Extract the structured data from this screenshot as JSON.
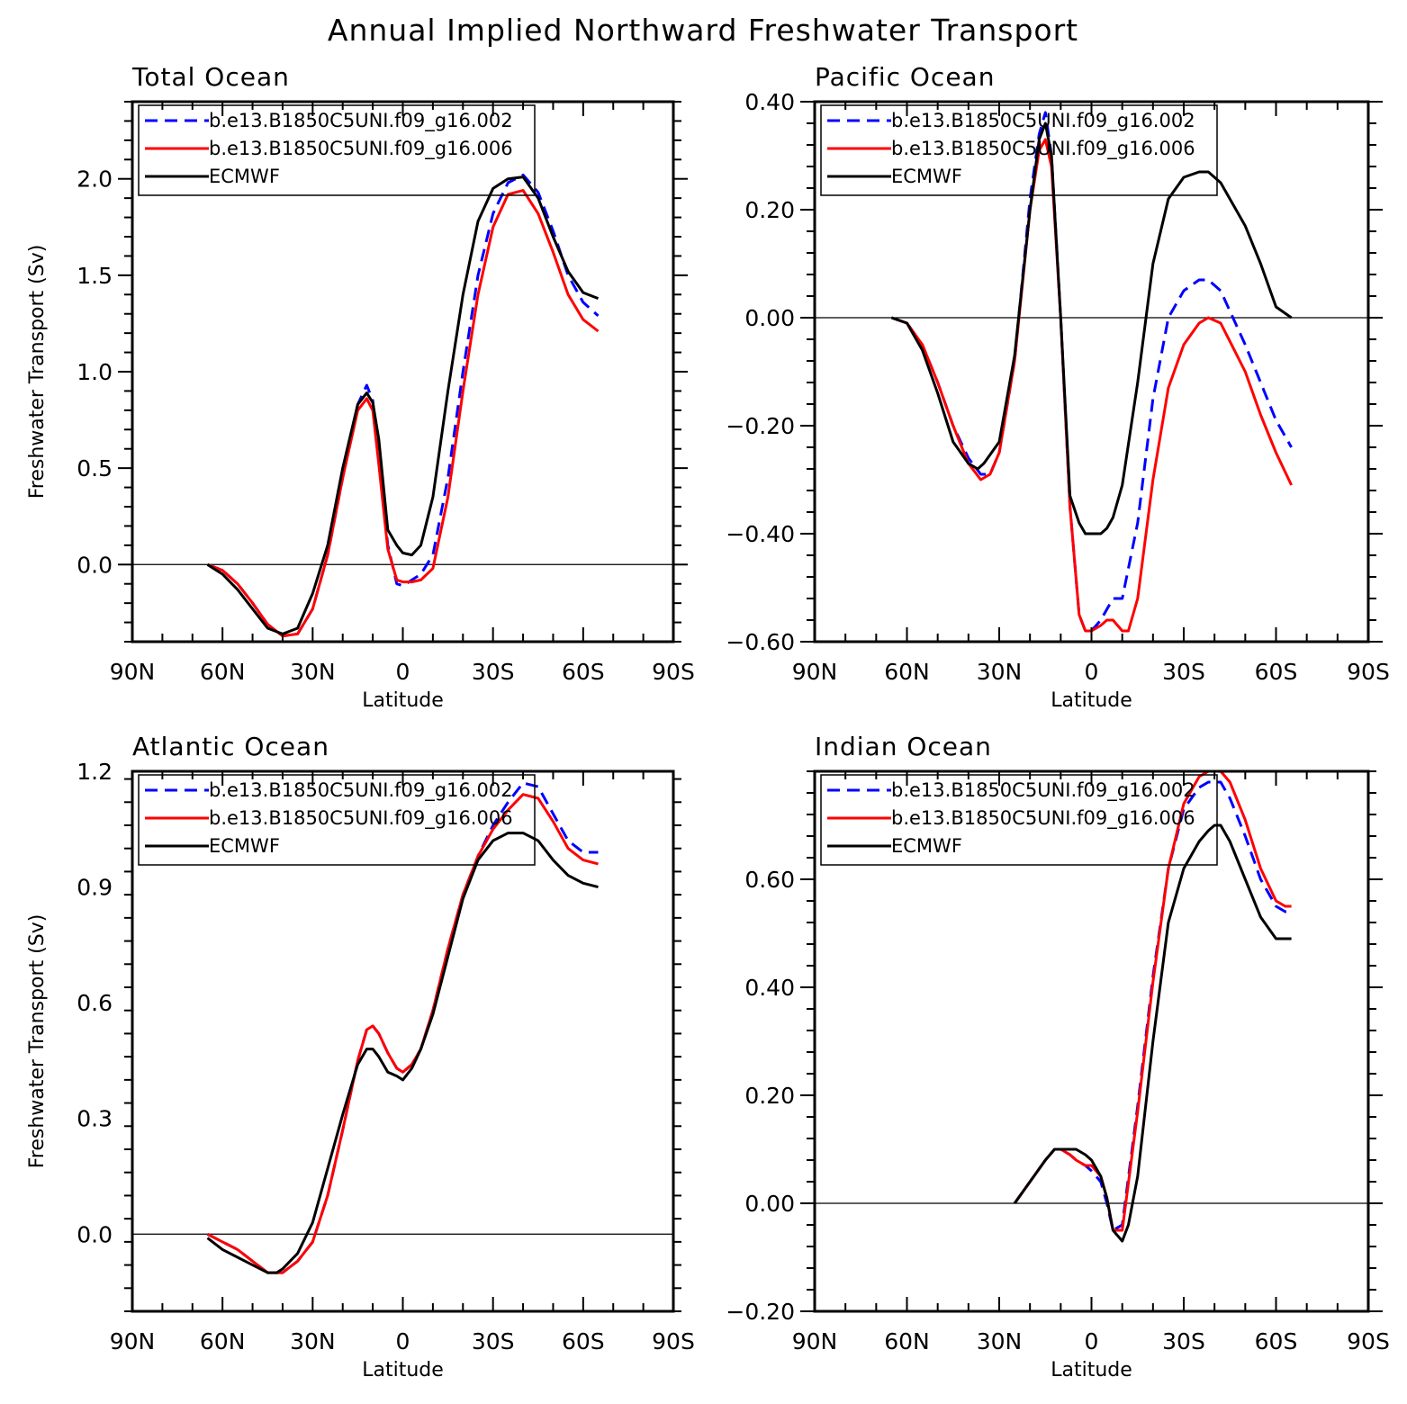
{
  "figure_title": "Annual Implied Northward Freshwater Transport",
  "series_styles": [
    {
      "name": "b.e13.B1850C5UNI.f09_g16.002",
      "color": "#0000ff",
      "dashed": true
    },
    {
      "name": "b.e13.B1850C5UNI.f09_g16.006",
      "color": "#ff0000",
      "dashed": false
    },
    {
      "name": "ECMWF",
      "color": "#000000",
      "dashed": false
    }
  ],
  "chart_data": [
    {
      "type": "line",
      "title": "Total Ocean",
      "xlabel": "Latitude",
      "ylabel": "Freshwater Transport (Sv)",
      "xlim": [
        -90,
        90
      ],
      "ylim": [
        -0.4,
        2.4
      ],
      "x_ticks": [
        -90,
        -60,
        -30,
        0,
        30,
        60,
        90
      ],
      "x_tick_labels": [
        "90N",
        "60N",
        "30N",
        "0",
        "30S",
        "60S",
        "90S"
      ],
      "y_ticks": [
        0.0,
        0.5,
        1.0,
        1.5,
        2.0
      ],
      "y_tick_labels": [
        "0.0",
        "0.5",
        "1.0",
        "1.5",
        "2.0"
      ],
      "y_minor_step": 0.1,
      "zero_line": true,
      "legend": "top-left",
      "series": [
        {
          "name": "b.e13.B1850C5UNI.f09_g16.002",
          "x": [
            -65,
            -60,
            -55,
            -50,
            -45,
            -40,
            -35,
            -30,
            -25,
            -20,
            -15,
            -12,
            -10,
            -8,
            -5,
            -2,
            0,
            3,
            6,
            10,
            15,
            20,
            25,
            30,
            35,
            40,
            45,
            50,
            55,
            60,
            65
          ],
          "values": [
            0.0,
            -0.03,
            -0.1,
            -0.2,
            -0.31,
            -0.37,
            -0.36,
            -0.23,
            0.05,
            0.45,
            0.83,
            0.93,
            0.85,
            0.55,
            0.1,
            -0.1,
            -0.11,
            -0.08,
            -0.05,
            0.05,
            0.45,
            1.0,
            1.5,
            1.82,
            1.98,
            2.02,
            1.93,
            1.73,
            1.5,
            1.36,
            1.29
          ]
        },
        {
          "name": "b.e13.B1850C5UNI.f09_g16.006",
          "x": [
            -65,
            -60,
            -55,
            -50,
            -45,
            -40,
            -35,
            -30,
            -25,
            -20,
            -15,
            -12,
            -10,
            -8,
            -5,
            -2,
            0,
            3,
            6,
            10,
            15,
            20,
            25,
            30,
            35,
            40,
            45,
            50,
            55,
            60,
            65
          ],
          "values": [
            0.0,
            -0.03,
            -0.1,
            -0.2,
            -0.31,
            -0.37,
            -0.36,
            -0.23,
            0.05,
            0.45,
            0.8,
            0.86,
            0.8,
            0.52,
            0.08,
            -0.08,
            -0.09,
            -0.09,
            -0.08,
            -0.02,
            0.35,
            0.9,
            1.4,
            1.75,
            1.92,
            1.94,
            1.82,
            1.62,
            1.4,
            1.27,
            1.21
          ]
        },
        {
          "name": "ECMWF",
          "x": [
            -65,
            -60,
            -55,
            -50,
            -45,
            -40,
            -35,
            -30,
            -25,
            -20,
            -15,
            -12,
            -10,
            -8,
            -5,
            -2,
            0,
            3,
            6,
            10,
            15,
            20,
            25,
            30,
            35,
            40,
            45,
            50,
            55,
            60,
            65
          ],
          "values": [
            0.0,
            -0.05,
            -0.13,
            -0.23,
            -0.33,
            -0.36,
            -0.33,
            -0.15,
            0.1,
            0.5,
            0.83,
            0.89,
            0.84,
            0.65,
            0.18,
            0.1,
            0.06,
            0.05,
            0.1,
            0.35,
            0.9,
            1.4,
            1.78,
            1.95,
            2.0,
            2.01,
            1.9,
            1.7,
            1.52,
            1.41,
            1.38
          ]
        }
      ]
    },
    {
      "type": "line",
      "title": "Pacific Ocean",
      "xlabel": "Latitude",
      "ylabel": "",
      "xlim": [
        -90,
        90
      ],
      "ylim": [
        -0.6,
        0.4
      ],
      "x_ticks": [
        -90,
        -60,
        -30,
        0,
        30,
        60,
        90
      ],
      "x_tick_labels": [
        "90N",
        "60N",
        "30N",
        "0",
        "30S",
        "60S",
        "90S"
      ],
      "y_ticks": [
        -0.6,
        -0.4,
        -0.2,
        0.0,
        0.2,
        0.4
      ],
      "y_tick_labels": [
        "−0.60",
        "−0.40",
        "−0.20",
        "0.00",
        "0.20",
        "0.40"
      ],
      "y_minor_step": 0.04,
      "zero_line": true,
      "legend": "top-left",
      "series": [
        {
          "name": "b.e13.B1850C5UNI.f09_g16.002",
          "x": [
            -65,
            -60,
            -55,
            -50,
            -45,
            -40,
            -36,
            -33,
            -30,
            -25,
            -20,
            -17,
            -15,
            -13,
            -10,
            -7,
            -4,
            -2,
            0,
            3,
            5,
            7,
            10,
            15,
            20,
            25,
            30,
            35,
            38,
            42,
            50,
            55,
            60,
            65
          ],
          "values": [
            0.0,
            -0.01,
            -0.05,
            -0.12,
            -0.2,
            -0.26,
            -0.29,
            -0.29,
            -0.25,
            -0.08,
            0.22,
            0.34,
            0.38,
            0.3,
            0.0,
            -0.35,
            -0.55,
            -0.58,
            -0.58,
            -0.56,
            -0.54,
            -0.52,
            -0.52,
            -0.38,
            -0.15,
            0.0,
            0.05,
            0.07,
            0.07,
            0.05,
            -0.05,
            -0.12,
            -0.19,
            -0.24
          ]
        },
        {
          "name": "b.e13.B1850C5UNI.f09_g16.006",
          "x": [
            -65,
            -60,
            -55,
            -50,
            -45,
            -40,
            -36,
            -33,
            -30,
            -25,
            -20,
            -17,
            -15,
            -13,
            -10,
            -7,
            -4,
            -2,
            0,
            3,
            5,
            7,
            10,
            12,
            15,
            20,
            25,
            30,
            35,
            38,
            42,
            50,
            55,
            60,
            65
          ],
          "values": [
            0.0,
            -0.01,
            -0.05,
            -0.12,
            -0.2,
            -0.27,
            -0.3,
            -0.29,
            -0.25,
            -0.08,
            0.2,
            0.31,
            0.33,
            0.28,
            0.0,
            -0.35,
            -0.55,
            -0.58,
            -0.58,
            -0.57,
            -0.56,
            -0.56,
            -0.58,
            -0.58,
            -0.52,
            -0.3,
            -0.13,
            -0.05,
            -0.01,
            0.0,
            -0.01,
            -0.1,
            -0.18,
            -0.25,
            -0.31
          ]
        },
        {
          "name": "ECMWF",
          "x": [
            -65,
            -60,
            -55,
            -50,
            -45,
            -40,
            -37,
            -35,
            -30,
            -25,
            -20,
            -17,
            -15,
            -13,
            -10,
            -7,
            -4,
            -2,
            0,
            3,
            5,
            7,
            10,
            15,
            20,
            25,
            30,
            35,
            38,
            42,
            50,
            55,
            60,
            65
          ],
          "values": [
            0.0,
            -0.01,
            -0.06,
            -0.14,
            -0.23,
            -0.27,
            -0.28,
            -0.27,
            -0.23,
            -0.07,
            0.2,
            0.33,
            0.36,
            0.3,
            0.0,
            -0.33,
            -0.38,
            -0.4,
            -0.4,
            -0.4,
            -0.39,
            -0.37,
            -0.31,
            -0.12,
            0.1,
            0.22,
            0.26,
            0.27,
            0.27,
            0.25,
            0.17,
            0.1,
            0.02,
            0.0
          ]
        }
      ]
    },
    {
      "type": "line",
      "title": "Atlantic Ocean",
      "xlabel": "Latitude",
      "ylabel": "Freshwater Transport (Sv)",
      "xlim": [
        -90,
        90
      ],
      "ylim": [
        -0.2,
        1.2
      ],
      "x_ticks": [
        -90,
        -60,
        -30,
        0,
        30,
        60,
        90
      ],
      "x_tick_labels": [
        "90N",
        "60N",
        "30N",
        "0",
        "30S",
        "60S",
        "90S"
      ],
      "y_ticks": [
        0.0,
        0.3,
        0.6,
        0.9,
        1.2
      ],
      "y_tick_labels": [
        "0.0",
        "0.3",
        "0.6",
        "0.9",
        "1.2"
      ],
      "y_minor_step": 0.06,
      "zero_line": true,
      "legend": "top-left",
      "series": [
        {
          "name": "b.e13.B1850C5UNI.f09_g16.002",
          "x": [
            -65,
            -60,
            -55,
            -50,
            -45,
            -42,
            -40,
            -35,
            -30,
            -25,
            -20,
            -15,
            -12,
            -10,
            -8,
            -5,
            -2,
            0,
            3,
            6,
            10,
            15,
            20,
            25,
            30,
            35,
            40,
            45,
            50,
            55,
            60,
            65
          ],
          "values": [
            0.0,
            -0.02,
            -0.04,
            -0.07,
            -0.1,
            -0.1,
            -0.1,
            -0.07,
            -0.02,
            0.1,
            0.27,
            0.45,
            0.53,
            0.54,
            0.52,
            0.47,
            0.43,
            0.42,
            0.44,
            0.48,
            0.58,
            0.74,
            0.88,
            0.98,
            1.06,
            1.12,
            1.17,
            1.16,
            1.09,
            1.02,
            0.99,
            0.99
          ]
        },
        {
          "name": "b.e13.B1850C5UNI.f09_g16.006",
          "x": [
            -65,
            -60,
            -55,
            -50,
            -45,
            -42,
            -40,
            -35,
            -30,
            -25,
            -20,
            -15,
            -12,
            -10,
            -8,
            -5,
            -2,
            0,
            3,
            6,
            10,
            15,
            20,
            25,
            30,
            35,
            40,
            45,
            50,
            55,
            60,
            65
          ],
          "values": [
            0.0,
            -0.02,
            -0.04,
            -0.07,
            -0.1,
            -0.1,
            -0.1,
            -0.07,
            -0.02,
            0.1,
            0.27,
            0.45,
            0.53,
            0.54,
            0.52,
            0.47,
            0.43,
            0.42,
            0.44,
            0.48,
            0.58,
            0.74,
            0.88,
            0.98,
            1.05,
            1.1,
            1.14,
            1.13,
            1.07,
            1.0,
            0.97,
            0.96
          ]
        },
        {
          "name": "ECMWF",
          "x": [
            -65,
            -60,
            -55,
            -50,
            -45,
            -42,
            -40,
            -35,
            -30,
            -25,
            -20,
            -15,
            -12,
            -10,
            -8,
            -5,
            -2,
            0,
            3,
            6,
            10,
            15,
            20,
            25,
            30,
            35,
            40,
            45,
            50,
            55,
            60,
            65
          ],
          "values": [
            -0.01,
            -0.04,
            -0.06,
            -0.08,
            -0.1,
            -0.1,
            -0.09,
            -0.05,
            0.03,
            0.17,
            0.31,
            0.44,
            0.48,
            0.48,
            0.46,
            0.42,
            0.41,
            0.4,
            0.43,
            0.48,
            0.57,
            0.72,
            0.87,
            0.97,
            1.02,
            1.04,
            1.04,
            1.02,
            0.97,
            0.93,
            0.91,
            0.9
          ]
        }
      ]
    },
    {
      "type": "line",
      "title": "Indian Ocean",
      "xlabel": "Latitude",
      "ylabel": "",
      "xlim": [
        -90,
        90
      ],
      "ylim": [
        -0.2,
        0.8
      ],
      "x_ticks": [
        -90,
        -60,
        -30,
        0,
        30,
        60,
        90
      ],
      "x_tick_labels": [
        "90N",
        "60N",
        "30N",
        "0",
        "30S",
        "60S",
        "90S"
      ],
      "y_ticks": [
        -0.2,
        0.0,
        0.2,
        0.4,
        0.6
      ],
      "y_tick_labels": [
        "−0.20",
        "0.00",
        "0.20",
        "0.40",
        "0.60"
      ],
      "y_minor_step": 0.04,
      "zero_line": true,
      "legend": "top-left",
      "series": [
        {
          "name": "b.e13.B1850C5UNI.f09_g16.002",
          "x": [
            -25,
            -20,
            -15,
            -12,
            -10,
            -7,
            -5,
            -2,
            0,
            3,
            5,
            7,
            10,
            15,
            20,
            25,
            30,
            35,
            38,
            40,
            42,
            45,
            50,
            55,
            60,
            63,
            65
          ],
          "values": [
            0.0,
            0.04,
            0.08,
            0.1,
            0.1,
            0.09,
            0.08,
            0.07,
            0.06,
            0.04,
            0.0,
            -0.05,
            -0.04,
            0.18,
            0.42,
            0.62,
            0.73,
            0.77,
            0.78,
            0.78,
            0.78,
            0.75,
            0.68,
            0.6,
            0.55,
            0.54,
            0.54
          ]
        },
        {
          "name": "b.e13.B1850C5UNI.f09_g16.006",
          "x": [
            -25,
            -20,
            -15,
            -12,
            -10,
            -7,
            -5,
            -2,
            0,
            3,
            5,
            7,
            10,
            15,
            20,
            25,
            30,
            35,
            38,
            40,
            42,
            45,
            50,
            55,
            60,
            63,
            65
          ],
          "values": [
            0.0,
            0.04,
            0.08,
            0.1,
            0.1,
            0.09,
            0.08,
            0.07,
            0.07,
            0.05,
            0.01,
            -0.05,
            -0.05,
            0.17,
            0.41,
            0.62,
            0.74,
            0.79,
            0.8,
            0.8,
            0.8,
            0.78,
            0.71,
            0.62,
            0.56,
            0.55,
            0.55
          ]
        },
        {
          "name": "ECMWF",
          "x": [
            -25,
            -20,
            -15,
            -12,
            -10,
            -7,
            -5,
            -2,
            0,
            3,
            5,
            7,
            10,
            12,
            15,
            20,
            25,
            30,
            35,
            38,
            40,
            42,
            45,
            50,
            55,
            60,
            63,
            65
          ],
          "values": [
            0.0,
            0.04,
            0.08,
            0.1,
            0.1,
            0.1,
            0.1,
            0.09,
            0.08,
            0.05,
            0.01,
            -0.05,
            -0.07,
            -0.04,
            0.05,
            0.3,
            0.52,
            0.62,
            0.67,
            0.69,
            0.7,
            0.7,
            0.67,
            0.6,
            0.53,
            0.49,
            0.49,
            0.49
          ]
        }
      ]
    }
  ]
}
